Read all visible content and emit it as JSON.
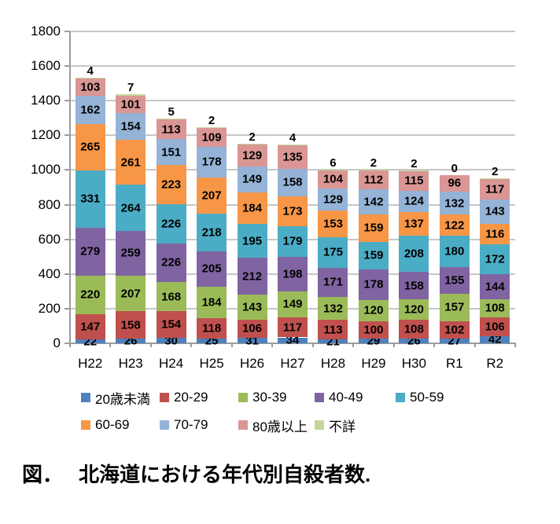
{
  "caption": {
    "prefix": "図．",
    "text": "北海道における年代別自殺者数."
  },
  "chart_data": {
    "type": "bar",
    "stacked": true,
    "title": "",
    "xlabel": "",
    "ylabel": "",
    "grid": true,
    "data_labels": true,
    "legend_position": "bottom",
    "ylim": [
      0,
      1800
    ],
    "ytick_step": 200,
    "yticks": [
      "0",
      "200",
      "400",
      "600",
      "800",
      "1000",
      "1200",
      "1400",
      "1600",
      "1800"
    ],
    "categories": [
      "H22",
      "H23",
      "H24",
      "H25",
      "H26",
      "H27",
      "H28",
      "H29",
      "H30",
      "R1",
      "R2"
    ],
    "series": [
      {
        "name": "20歳未満",
        "key": "under-20",
        "color": "#4F81BD",
        "values": [
          22,
          26,
          30,
          25,
          31,
          34,
          21,
          29,
          26,
          27,
          42
        ]
      },
      {
        "name": "20-29",
        "key": "20-29",
        "color": "#C0504D",
        "values": [
          147,
          158,
          154,
          118,
          106,
          117,
          113,
          100,
          108,
          102,
          106
        ]
      },
      {
        "name": "30-39",
        "key": "30-39",
        "color": "#9BBB59",
        "values": [
          220,
          207,
          168,
          184,
          143,
          149,
          132,
          120,
          120,
          157,
          108
        ]
      },
      {
        "name": "40-49",
        "key": "40-49",
        "color": "#8064A2",
        "values": [
          279,
          259,
          226,
          205,
          212,
          198,
          171,
          178,
          158,
          155,
          144
        ]
      },
      {
        "name": "50-59",
        "key": "50-59",
        "color": "#4BACC6",
        "values": [
          331,
          264,
          226,
          218,
          195,
          179,
          175,
          159,
          208,
          180,
          172
        ]
      },
      {
        "name": "60-69",
        "key": "60-69",
        "color": "#F79646",
        "values": [
          265,
          261,
          223,
          207,
          184,
          173,
          153,
          159,
          137,
          122,
          116
        ]
      },
      {
        "name": "70-79",
        "key": "70-79",
        "color": "#95B3D7",
        "values": [
          162,
          154,
          151,
          178,
          149,
          158,
          129,
          142,
          124,
          132,
          143
        ]
      },
      {
        "name": "80歳以上",
        "key": "80-plus",
        "color": "#D99694",
        "values": [
          103,
          101,
          113,
          109,
          129,
          135,
          104,
          112,
          115,
          96,
          117
        ]
      },
      {
        "name": "不詳",
        "key": "unknown",
        "color": "#C3D69B",
        "values": [
          4,
          7,
          5,
          2,
          2,
          4,
          6,
          2,
          2,
          0,
          2
        ]
      }
    ]
  }
}
